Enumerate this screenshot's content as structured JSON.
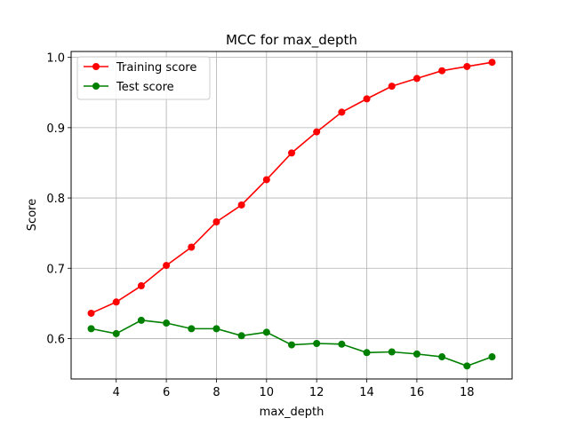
{
  "chart_data": {
    "type": "line",
    "title": "MCC for max_depth",
    "xlabel": "max_depth",
    "ylabel": "Score",
    "xlim": [
      2.2,
      19.8
    ],
    "ylim": [
      0.5425,
      1.0084
    ],
    "xticks": [
      4,
      6,
      8,
      10,
      12,
      14,
      16,
      18
    ],
    "yticks": [
      0.6,
      0.7,
      0.8,
      0.9,
      1.0
    ],
    "ytick_labels": [
      "0.6",
      "0.7",
      "0.8",
      "0.9",
      "1.0"
    ],
    "grid": true,
    "legend_position": "upper-left",
    "x": [
      3,
      4,
      5,
      6,
      7,
      8,
      9,
      10,
      11,
      12,
      13,
      14,
      15,
      16,
      17,
      18,
      19
    ],
    "series": [
      {
        "name": "Training score",
        "color": "#ff0000",
        "values": [
          0.636,
          0.652,
          0.675,
          0.704,
          0.73,
          0.766,
          0.79,
          0.826,
          0.864,
          0.894,
          0.922,
          0.941,
          0.959,
          0.97,
          0.981,
          0.987,
          0.993
        ]
      },
      {
        "name": "Test score",
        "color": "#008000",
        "values": [
          0.614,
          0.607,
          0.626,
          0.622,
          0.614,
          0.614,
          0.604,
          0.609,
          0.591,
          0.593,
          0.592,
          0.58,
          0.581,
          0.578,
          0.574,
          0.561,
          0.574
        ]
      }
    ]
  }
}
